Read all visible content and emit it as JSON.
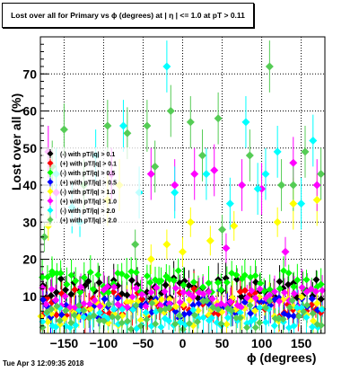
{
  "title": "Lost over all for Primary vs ϕ (degrees) at | η | <= 1.0 at pT > 0.11",
  "footer_timestamp": "Tue Apr  3 12:09:35 2018",
  "chart_data": {
    "type": "scatter",
    "xlabel": "ϕ (degrees)",
    "ylabel": "Lost over all (%)",
    "xlim": [
      -180,
      180
    ],
    "ylim": [
      0,
      80
    ],
    "xticks": [
      -150,
      -100,
      -50,
      0,
      50,
      100,
      150
    ],
    "yticks": [
      10,
      20,
      30,
      40,
      50,
      60,
      70
    ],
    "grid": true,
    "legend_position": "upper-left",
    "series": [
      {
        "name": "(-) with pT/|q| > 0.1",
        "color": "#000000",
        "seed": 11,
        "base": 12,
        "spread": 3,
        "outliers": []
      },
      {
        "name": "(+) with pT/|q| > 0.1",
        "color": "#ff0000",
        "seed": 23,
        "base": 8,
        "spread": 4,
        "outliers": []
      },
      {
        "name": "(-) with pT/|q| > 0.5",
        "color": "#00ff00",
        "seed": 37,
        "base": 14,
        "spread": 3,
        "outliers": [
          [
            -165,
            16
          ],
          [
            -100,
            11
          ],
          [
            -30,
            14
          ]
        ]
      },
      {
        "name": "(+) with pT/|q| > 0.5",
        "color": "#0000ff",
        "seed": 41,
        "base": 7,
        "spread": 3,
        "outliers": []
      },
      {
        "name": "(-) with pT/|q| > 1.0",
        "color": "#ffff00",
        "seed": 53,
        "base": 6,
        "spread": 4,
        "outliers": [
          [
            -170,
            29
          ],
          [
            -95,
            36
          ],
          [
            -80,
            40
          ],
          [
            -20,
            24
          ],
          [
            0,
            22
          ],
          [
            10,
            30
          ],
          [
            35,
            25
          ],
          [
            65,
            29
          ],
          [
            120,
            30
          ],
          [
            170,
            36
          ],
          [
            -40,
            20
          ],
          [
            140,
            35
          ]
        ]
      },
      {
        "name": "(+) with pT/|q| > 1.0",
        "color": "#ff00ff",
        "seed": 67,
        "base": 10,
        "spread": 3,
        "outliers": [
          [
            -170,
            49
          ],
          [
            -160,
            38
          ],
          [
            -40,
            43
          ],
          [
            -10,
            40
          ],
          [
            15,
            43
          ],
          [
            40,
            44
          ],
          [
            75,
            40
          ],
          [
            100,
            39
          ],
          [
            140,
            46
          ],
          [
            170,
            40
          ],
          [
            -90,
            43
          ],
          [
            55,
            23
          ],
          [
            130,
            22
          ]
        ]
      },
      {
        "name": "(-) with pT/|q| > 2.0",
        "color": "#00ffff",
        "seed": 79,
        "base": 4,
        "spread": 3,
        "outliers": [
          [
            -160,
            43
          ],
          [
            -110,
            48
          ],
          [
            -75,
            56
          ],
          [
            -55,
            38
          ],
          [
            -20,
            72
          ],
          [
            -10,
            38
          ],
          [
            30,
            43
          ],
          [
            80,
            57
          ],
          [
            105,
            43
          ],
          [
            120,
            49
          ],
          [
            165,
            52
          ],
          [
            -140,
            34
          ],
          [
            -130,
            30
          ],
          [
            60,
            35
          ],
          [
            95,
            39
          ],
          [
            150,
            35
          ]
        ]
      },
      {
        "name": "(+) with pT/|q| > 2.0",
        "color": "#55cc55",
        "seed": 97,
        "base": 5,
        "spread": 4,
        "outliers": [
          [
            -165,
            45
          ],
          [
            -150,
            55
          ],
          [
            -125,
            40
          ],
          [
            -95,
            56
          ],
          [
            -70,
            54
          ],
          [
            -45,
            56
          ],
          [
            -35,
            45
          ],
          [
            -15,
            60
          ],
          [
            10,
            57
          ],
          [
            25,
            48
          ],
          [
            45,
            58
          ],
          [
            85,
            48
          ],
          [
            110,
            72
          ],
          [
            125,
            40
          ],
          [
            155,
            49
          ],
          [
            175,
            43
          ],
          [
            -175,
            26
          ],
          [
            -60,
            24
          ],
          [
            50,
            28
          ],
          [
            140,
            40
          ]
        ]
      }
    ]
  }
}
